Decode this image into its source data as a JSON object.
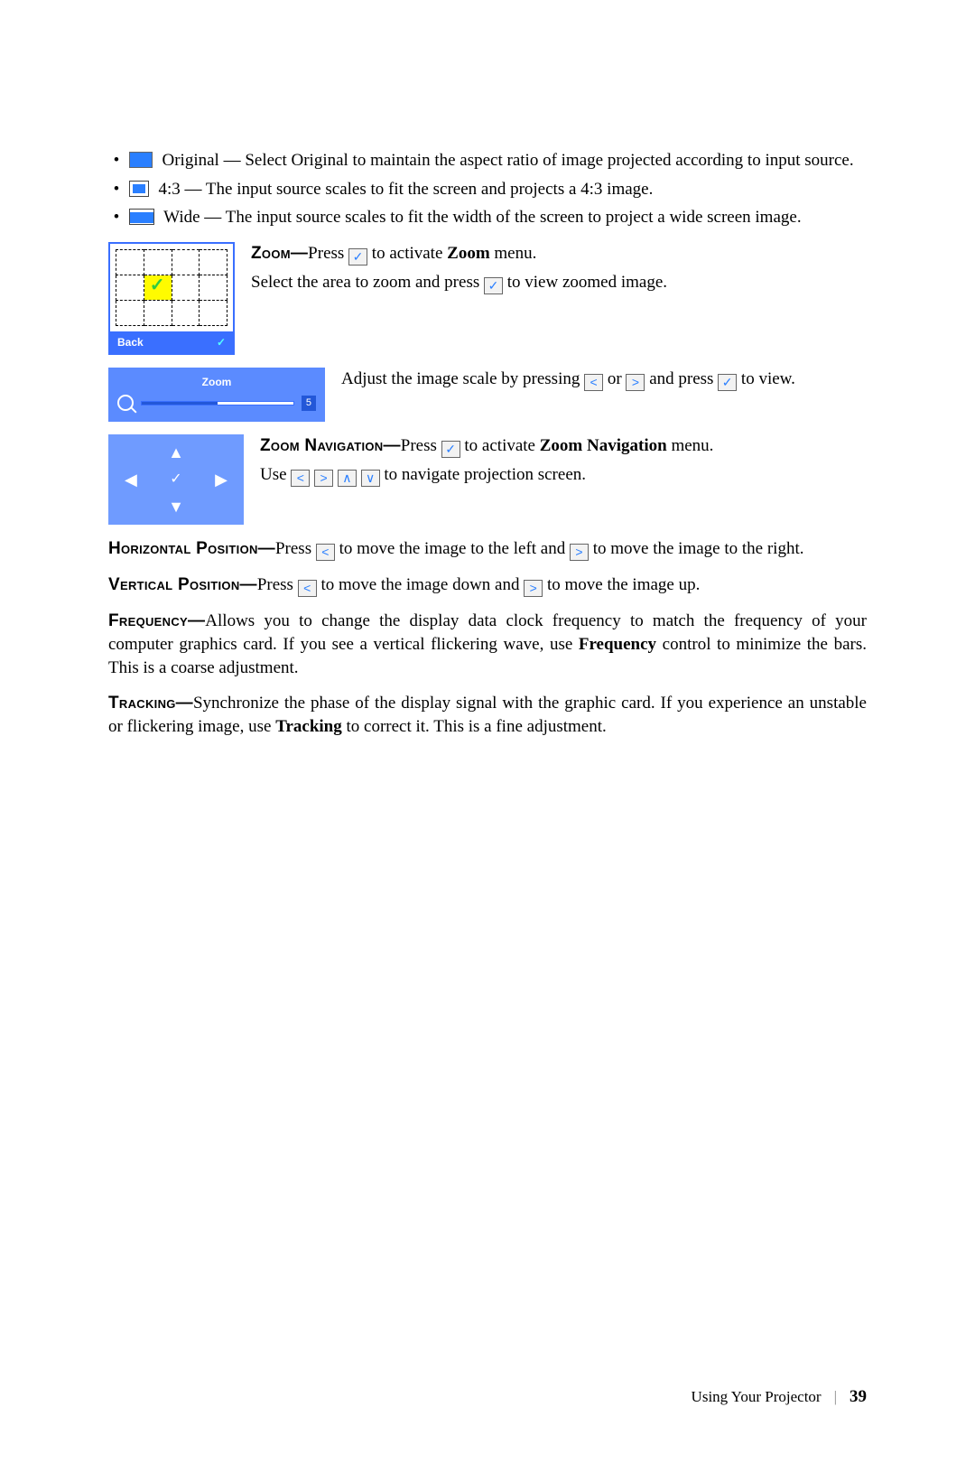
{
  "bullets": {
    "original": "Original — Select Original to maintain the aspect ratio of image projected according to input source.",
    "ratio43": "4:3 — The input source scales to fit the screen and projects a 4:3 image.",
    "wide": "Wide — The input source scales to fit the width of the screen to project a wide screen image."
  },
  "zoom": {
    "label": "Zoom—",
    "text1a": "Press ",
    "text1b": " to activate ",
    "text1c": " menu.",
    "boldMenu": "Zoom",
    "text2a": "Select the area to zoom and press ",
    "text2b": " to view zoomed image.",
    "gridBack": "Back",
    "sliderTitle": "Zoom",
    "sliderValue": "5",
    "adj1": "Adjust the image scale by pressing ",
    "adj2": " or ",
    "adj3": " and press ",
    "adj4": " to view."
  },
  "zoomNav": {
    "label": "Zoom Navigation—",
    "t1": "Press ",
    "t2": " to activate ",
    "bold": "Zoom Navigation",
    "t3": " menu.",
    "use": "Use ",
    "usetail": " to navigate projection screen."
  },
  "hpos": {
    "label": "Horizontal Position—",
    "a": "Press ",
    "b": " to move the image to the left and ",
    "c": " to move the image to the right."
  },
  "vpos": {
    "label": "Vertical Position—",
    "a": "Press ",
    "b": " to move the image down and ",
    "c": " to move the image up."
  },
  "freq": {
    "label": "Frequency—",
    "a": "Allows you to change the display data clock frequency to match the frequency of your computer graphics card. If you see a vertical flickering wave, use ",
    "bold": "Frequency",
    "b": " control to minimize the bars. This is a coarse adjustment."
  },
  "track": {
    "label": "Tracking—",
    "a": "Synchronize the phase of the display signal with the graphic card. If you experience an unstable or flickering image, use ",
    "bold": "Tracking",
    "b": " to correct it. This is a fine adjustment."
  },
  "footer": {
    "section": "Using Your Projector",
    "page": "39"
  },
  "icons": {
    "check": "✓",
    "left": "<",
    "right": ">",
    "up": "∧",
    "down": "∨",
    "navLeft": "◀",
    "navRight": "▶",
    "navUp": "▲",
    "navDown": "▼"
  },
  "colors": {
    "accent": "#3a6fff"
  }
}
